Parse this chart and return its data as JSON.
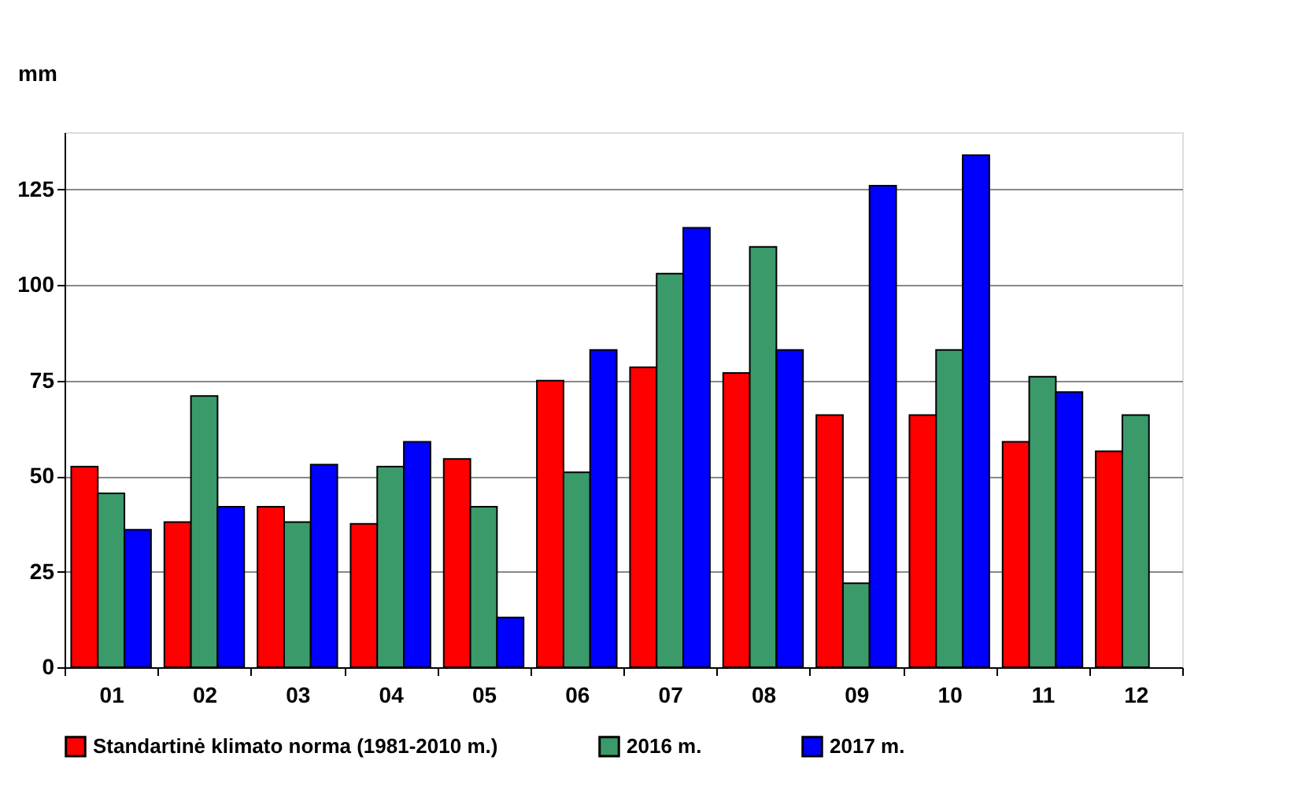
{
  "chart_data": {
    "type": "bar",
    "ylabel": "mm",
    "categories": [
      "01",
      "02",
      "03",
      "04",
      "05",
      "06",
      "07",
      "08",
      "09",
      "10",
      "11",
      "12"
    ],
    "series": [
      {
        "name": "Standartinė klimato norma (1981-2010 m.)",
        "color": "#ff0000",
        "values": [
          52.5,
          38,
          42,
          37.5,
          54.5,
          75,
          78.5,
          77,
          66,
          66,
          59,
          56.5
        ]
      },
      {
        "name": "2016 m.",
        "color": "#3a9a6a",
        "values": [
          45.5,
          71,
          38,
          52.5,
          42,
          51,
          103,
          110,
          22,
          83,
          76,
          66
        ]
      },
      {
        "name": "2017 m.",
        "color": "#0000ff",
        "values": [
          36,
          42,
          53,
          59,
          13,
          83,
          115,
          83,
          126,
          134,
          72,
          null
        ]
      }
    ],
    "ylim": [
      0,
      140
    ],
    "yticks": [
      0,
      25,
      50,
      75,
      100,
      125
    ],
    "grid": "y",
    "legend": "bottom"
  }
}
